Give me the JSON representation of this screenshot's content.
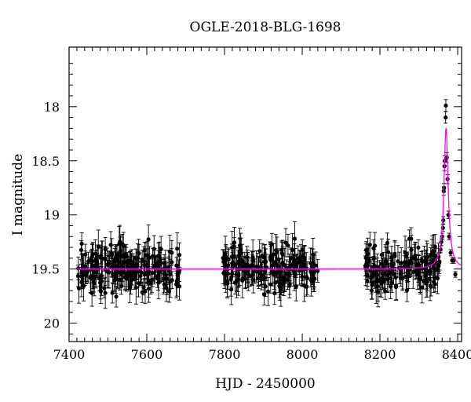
{
  "chart_data": {
    "type": "scatter",
    "title": "OGLE-2018-BLG-1698",
    "xlabel": "HJD - 2450000",
    "ylabel": "I magnitude",
    "xlim": [
      7400,
      8410
    ],
    "ylim": [
      20.17,
      17.45
    ],
    "y_inverted": true,
    "x_ticks": [
      "7400",
      "7600",
      "7800",
      "8000",
      "8200",
      "8400"
    ],
    "y_ticks": [
      "18",
      "18.5",
      "19",
      "19.5",
      "20"
    ],
    "grid": false,
    "legend": "none",
    "colors": {
      "points": "#000000",
      "model": "#ff00ff"
    },
    "baseline_magnitude": 19.5,
    "season_ranges": [
      [
        7418,
        7685
      ],
      [
        7795,
        8040
      ],
      [
        8162,
        8355
      ]
    ],
    "event_points": [
      {
        "x": 8356,
        "y": 19.32
      },
      {
        "x": 8358,
        "y": 19.25
      },
      {
        "x": 8360,
        "y": 19.2
      },
      {
        "x": 8362,
        "y": 19.12
      },
      {
        "x": 8363,
        "y": 19.05
      },
      {
        "x": 8364,
        "y": 18.78
      },
      {
        "x": 8365,
        "y": 18.75
      },
      {
        "x": 8366,
        "y": 18.55
      },
      {
        "x": 8367,
        "y": 18.5
      },
      {
        "x": 8369,
        "y": 18.1
      },
      {
        "x": 8369.5,
        "y": 17.99
      },
      {
        "x": 8372,
        "y": 18.47
      },
      {
        "x": 8374,
        "y": 18.67
      },
      {
        "x": 8376,
        "y": 19.0
      },
      {
        "x": 8378,
        "y": 19.2
      },
      {
        "x": 8382,
        "y": 19.35
      },
      {
        "x": 8386,
        "y": 19.42
      },
      {
        "x": 8390,
        "y": 19.42
      },
      {
        "x": 8394,
        "y": 19.55
      }
    ],
    "model": {
      "baseline": 19.5,
      "peak_time": 8370,
      "peak_magnitude": 18.2,
      "timescale": 6.5
    }
  }
}
